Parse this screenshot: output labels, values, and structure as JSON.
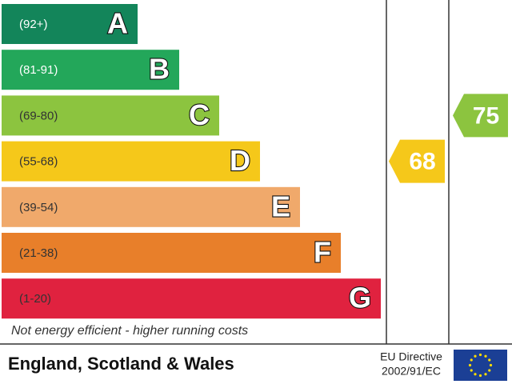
{
  "bands": [
    {
      "range": "(92+)",
      "letter": "A",
      "color": "#13855a",
      "text_color": "#ffffff"
    },
    {
      "range": "(81-91)",
      "letter": "B",
      "color": "#23a75a",
      "text_color": "#ffffff"
    },
    {
      "range": "(69-80)",
      "letter": "C",
      "color": "#8cc43f",
      "text_color": "#333333"
    },
    {
      "range": "(55-68)",
      "letter": "D",
      "color": "#f5c81a",
      "text_color": "#333333"
    },
    {
      "range": "(39-54)",
      "letter": "E",
      "color": "#f0a96b",
      "text_color": "#333333"
    },
    {
      "range": "(21-38)",
      "letter": "F",
      "color": "#e87f2a",
      "text_color": "#333333"
    },
    {
      "range": "(1-20)",
      "letter": "G",
      "color": "#e0223f",
      "text_color": "#333333"
    }
  ],
  "footer_note": "Not energy efficient - higher running costs",
  "region": "England, Scotland & Wales",
  "directive": [
    "EU Directive",
    "2002/91/EC"
  ],
  "current": 68,
  "potential": 75
}
